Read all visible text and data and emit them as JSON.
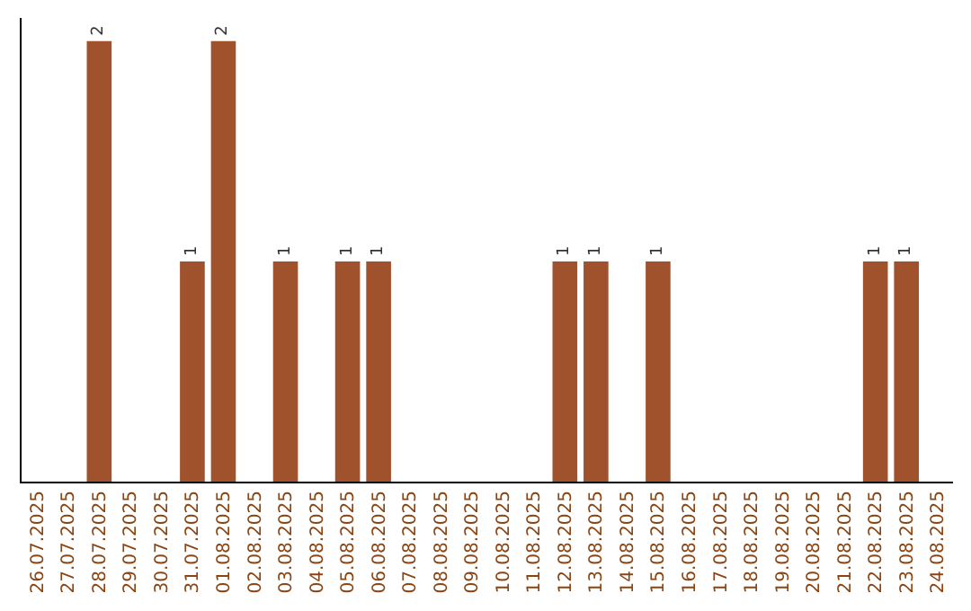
{
  "chart_data": {
    "type": "bar",
    "categories": [
      "26.07.2025",
      "27.07.2025",
      "28.07.2025",
      "29.07.2025",
      "30.07.2025",
      "31.07.2025",
      "01.08.2025",
      "02.08.2025",
      "03.08.2025",
      "04.08.2025",
      "05.08.2025",
      "06.08.2025",
      "07.08.2025",
      "08.08.2025",
      "09.08.2025",
      "10.08.2025",
      "11.08.2025",
      "12.08.2025",
      "13.08.2025",
      "14.08.2025",
      "15.08.2025",
      "16.08.2025",
      "17.08.2025",
      "18.08.2025",
      "19.08.2025",
      "20.08.2025",
      "21.08.2025",
      "22.08.2025",
      "23.08.2025",
      "24.08.2025"
    ],
    "values": [
      0,
      0,
      2,
      0,
      0,
      1,
      2,
      0,
      1,
      0,
      1,
      1,
      0,
      0,
      0,
      0,
      0,
      1,
      1,
      0,
      1,
      0,
      0,
      0,
      0,
      0,
      0,
      1,
      1,
      0
    ],
    "value_labels": [
      null,
      null,
      "2",
      null,
      null,
      "1",
      "2",
      null,
      "1",
      null,
      "1",
      "1",
      null,
      null,
      null,
      null,
      null,
      "1",
      "1",
      null,
      "1",
      null,
      null,
      null,
      null,
      null,
      null,
      "1",
      "1",
      null
    ],
    "color": "#a0522d",
    "tick_labels": "x"
  }
}
